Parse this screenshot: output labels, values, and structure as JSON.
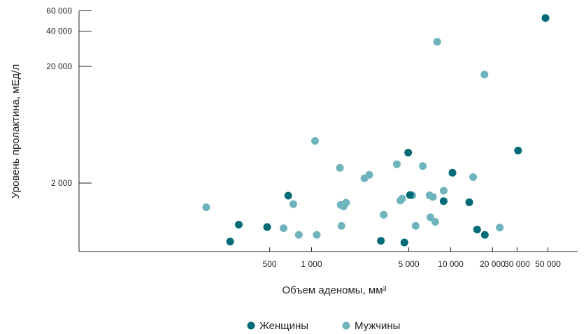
{
  "chart_data": {
    "type": "scatter",
    "xlabel": "Объем аденомы, мм³",
    "ylabel": "Уровень пролактина, мЕд/л",
    "x_scale": "log",
    "y_scale": "log",
    "xlim": [
      150,
      65000
    ],
    "ylim": [
      600,
      60000
    ],
    "x_ticks": [
      {
        "value": 500,
        "label": "500"
      },
      {
        "value": 1000,
        "label": "1 000"
      },
      {
        "value": 5000,
        "label": "5 000"
      },
      {
        "value": 10000,
        "label": "10 000"
      },
      {
        "value": 20000,
        "label": "20 000"
      },
      {
        "value": 30000,
        "label": "30 000"
      },
      {
        "value": 50000,
        "label": "50 000"
      }
    ],
    "y_ticks": [
      {
        "value": 2000,
        "label": "2 000"
      },
      {
        "value": 20000,
        "label": "20 000"
      },
      {
        "value": 40000,
        "label": "40 000"
      },
      {
        "value": 60000,
        "label": "60 000"
      }
    ],
    "grid": false,
    "legend_position": "bottom-center",
    "series": [
      {
        "name": "Женщины",
        "color": "#006b76",
        "points": [
          [
            260,
            630
          ],
          [
            300,
            880
          ],
          [
            480,
            840
          ],
          [
            680,
            1560
          ],
          [
            3150,
            640
          ],
          [
            4650,
            620
          ],
          [
            4950,
            3650
          ],
          [
            5100,
            1580
          ],
          [
            8900,
            1400
          ],
          [
            10300,
            2450
          ],
          [
            13600,
            1370
          ],
          [
            15500,
            800
          ],
          [
            17600,
            720
          ],
          [
            30500,
            3800
          ],
          [
            48000,
            52000
          ]
        ]
      },
      {
        "name": "Мужчины",
        "color": "#6fb3bc",
        "points": [
          [
            175,
            1240
          ],
          [
            630,
            820
          ],
          [
            740,
            1320
          ],
          [
            810,
            720
          ],
          [
            1060,
            4600
          ],
          [
            1090,
            720
          ],
          [
            1600,
            2700
          ],
          [
            1620,
            1300
          ],
          [
            1640,
            860
          ],
          [
            1700,
            1260
          ],
          [
            1770,
            1360
          ],
          [
            2400,
            2200
          ],
          [
            2600,
            2350
          ],
          [
            3300,
            1070
          ],
          [
            4100,
            2900
          ],
          [
            4350,
            1420
          ],
          [
            4480,
            1470
          ],
          [
            5300,
            1570
          ],
          [
            5600,
            860
          ],
          [
            6300,
            2800
          ],
          [
            7050,
            1570
          ],
          [
            7150,
            1020
          ],
          [
            7450,
            1520
          ],
          [
            7750,
            930
          ],
          [
            8000,
            32500
          ],
          [
            8900,
            1720
          ],
          [
            14500,
            2250
          ],
          [
            17500,
            17000
          ],
          [
            22500,
            830
          ]
        ]
      }
    ]
  }
}
